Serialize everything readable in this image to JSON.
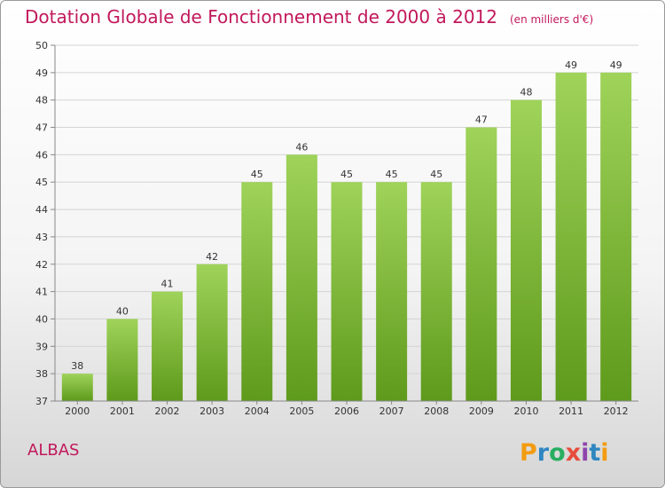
{
  "header": {
    "title": "Dotation Globale de Fonctionnement de 2000 à 2012",
    "subtitle": "(en milliers d'€)"
  },
  "commune": "ALBAS",
  "logo": {
    "text": "Proxiti"
  },
  "colors": {
    "accent": "#c2185b",
    "bar_top": "#9fd35a",
    "bar_bottom": "#5e9a1b",
    "grid": "#d4d4d4",
    "axis": "#888888",
    "label": "#333333"
  },
  "chart_data": {
    "type": "bar",
    "title": "Dotation Globale de Fonctionnement de 2000 à 2012",
    "subtitle": "(en milliers d'€)",
    "categories": [
      "2000",
      "2001",
      "2002",
      "2003",
      "2004",
      "2005",
      "2006",
      "2007",
      "2008",
      "2009",
      "2010",
      "2011",
      "2012"
    ],
    "values": [
      38,
      40,
      41,
      42,
      45,
      46,
      45,
      45,
      45,
      47,
      48,
      49,
      49
    ],
    "ylim": [
      37,
      50
    ],
    "yticks": [
      37,
      38,
      39,
      40,
      41,
      42,
      43,
      44,
      45,
      46,
      47,
      48,
      49,
      50
    ],
    "xlabel": "",
    "ylabel": "",
    "grid": true,
    "data_labels": true
  }
}
